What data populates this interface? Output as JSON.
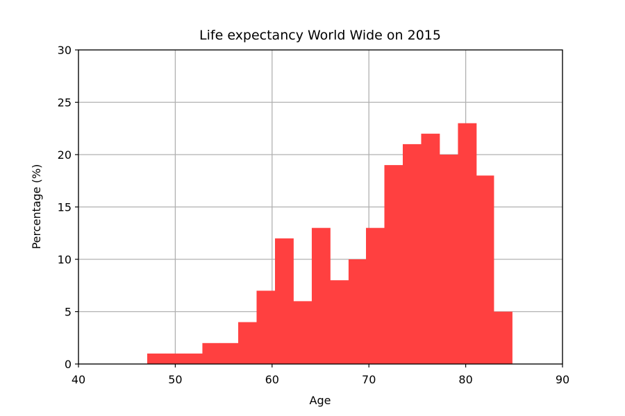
{
  "chart_data": {
    "type": "bar",
    "title": "Life expectancy World Wide on 2015",
    "xlabel": "Age",
    "ylabel": "Percentage (%)",
    "xlim": [
      40,
      90
    ],
    "ylim": [
      0,
      30
    ],
    "xticks": [
      40,
      50,
      60,
      70,
      80,
      90
    ],
    "yticks": [
      0,
      5,
      10,
      15,
      20,
      25,
      30
    ],
    "grid": true,
    "bar_color": "#ff4040",
    "bins": [
      {
        "x0": 47.1,
        "x1": 49.0,
        "value": 1
      },
      {
        "x0": 49.0,
        "x1": 50.9,
        "value": 1
      },
      {
        "x0": 50.9,
        "x1": 52.8,
        "value": 1
      },
      {
        "x0": 52.8,
        "x1": 54.6,
        "value": 2
      },
      {
        "x0": 54.6,
        "x1": 56.5,
        "value": 2
      },
      {
        "x0": 56.5,
        "x1": 58.4,
        "value": 4
      },
      {
        "x0": 58.4,
        "x1": 60.3,
        "value": 7
      },
      {
        "x0": 60.3,
        "x1": 62.2,
        "value": 12
      },
      {
        "x0": 62.2,
        "x1": 64.1,
        "value": 6
      },
      {
        "x0": 64.1,
        "x1": 66.0,
        "value": 13
      },
      {
        "x0": 66.0,
        "x1": 67.9,
        "value": 8
      },
      {
        "x0": 67.9,
        "x1": 69.7,
        "value": 10
      },
      {
        "x0": 69.7,
        "x1": 71.6,
        "value": 13
      },
      {
        "x0": 71.6,
        "x1": 73.5,
        "value": 19
      },
      {
        "x0": 73.5,
        "x1": 75.4,
        "value": 21
      },
      {
        "x0": 75.4,
        "x1": 77.3,
        "value": 22
      },
      {
        "x0": 77.3,
        "x1": 79.2,
        "value": 20
      },
      {
        "x0": 79.2,
        "x1": 81.1,
        "value": 23
      },
      {
        "x0": 81.1,
        "x1": 82.9,
        "value": 18
      },
      {
        "x0": 82.9,
        "x1": 84.8,
        "value": 5
      }
    ]
  }
}
